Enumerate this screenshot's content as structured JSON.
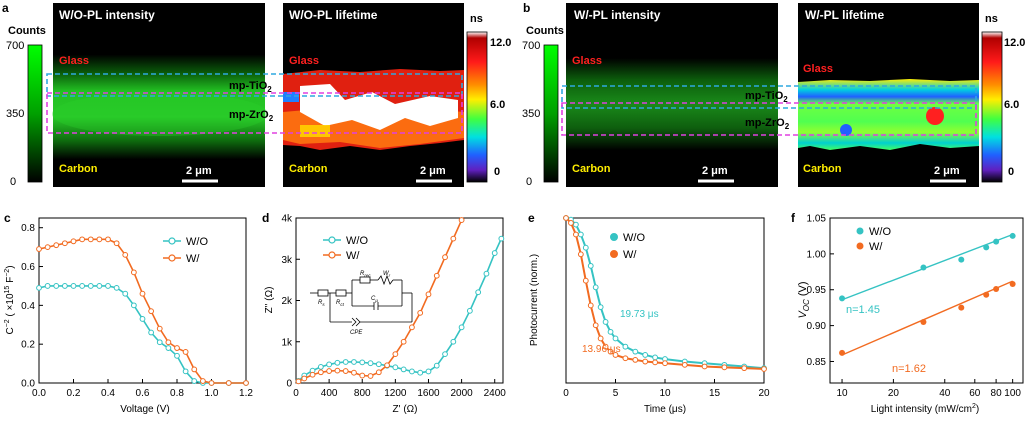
{
  "colors": {
    "wo": "#35c3c3",
    "w": "#f26b21",
    "box_blue": "#2fa8e0",
    "box_mag": "#e040e0",
    "region_red": "#ff2020",
    "region_yellow": "#ffee00"
  },
  "panel_letters": {
    "a": "a",
    "b": "b",
    "c": "c",
    "d": "d",
    "e": "e",
    "f": "f"
  },
  "panel_a": {
    "intensity_title": "W/O-PL intensity",
    "lifetime_title": "W/O-PL lifetime",
    "counts_label": "Counts",
    "counts_ticks": [
      "700",
      "350",
      "0"
    ],
    "ns_label": "ns",
    "ns_ticks": [
      "12.0",
      "6.0",
      "0"
    ],
    "glass": "Glass",
    "carbon": "Carbon",
    "tio2": "mp-TiO",
    "zro2": "mp-ZrO",
    "sub": "2",
    "scale": "2 μm"
  },
  "panel_b": {
    "intensity_title": "W/-PL intensity",
    "lifetime_title": "W/-PL lifetime",
    "counts_label": "Counts",
    "counts_ticks": [
      "700",
      "350",
      "0"
    ],
    "ns_label": "ns",
    "ns_ticks": [
      "12.0",
      "6.0",
      "0"
    ],
    "glass": "Glass",
    "carbon": "Carbon",
    "tio2": "mp-TiO",
    "zro2": "mp-ZrO",
    "sub": "2",
    "scale": "2 μm"
  },
  "chart_data": [
    {
      "panel": "c",
      "type": "line",
      "xlabel": "Voltage (V)",
      "ylabel_main": "C",
      "ylabel_sup1": "−2",
      "ylabel_mid": " ( ×10",
      "ylabel_sup2": "15",
      "ylabel_tail": " F",
      "ylabel_sup3": "−2",
      "ylabel_end": ")",
      "xlim": [
        0,
        1.2
      ],
      "ylim": [
        0,
        0.85
      ],
      "xticks": [
        "0.0",
        "0.2",
        "0.4",
        "0.6",
        "0.8",
        "1.0",
        "1.2"
      ],
      "yticks": [
        "0.0",
        "0.2",
        "0.4",
        "0.6",
        "0.8"
      ],
      "series": [
        {
          "name": "W/O",
          "x": [
            0,
            0.05,
            0.1,
            0.15,
            0.2,
            0.25,
            0.3,
            0.35,
            0.4,
            0.45,
            0.5,
            0.55,
            0.6,
            0.65,
            0.7,
            0.75,
            0.8,
            0.85,
            0.9,
            0.95,
            1.0,
            1.1,
            1.2
          ],
          "y": [
            0.49,
            0.5,
            0.5,
            0.5,
            0.5,
            0.5,
            0.5,
            0.5,
            0.5,
            0.49,
            0.46,
            0.4,
            0.33,
            0.26,
            0.21,
            0.18,
            0.14,
            0.06,
            0.01,
            0.0,
            0.0,
            0.0,
            0.0
          ]
        },
        {
          "name": "W/",
          "x": [
            0,
            0.05,
            0.1,
            0.15,
            0.2,
            0.25,
            0.3,
            0.35,
            0.4,
            0.45,
            0.5,
            0.55,
            0.6,
            0.65,
            0.7,
            0.75,
            0.8,
            0.85,
            0.9,
            0.95,
            1.0,
            1.1,
            1.2
          ],
          "y": [
            0.69,
            0.7,
            0.71,
            0.72,
            0.73,
            0.74,
            0.74,
            0.74,
            0.74,
            0.72,
            0.66,
            0.57,
            0.46,
            0.37,
            0.28,
            0.21,
            0.18,
            0.16,
            0.07,
            0.01,
            0.0,
            0.0,
            0.0
          ]
        }
      ]
    },
    {
      "panel": "d",
      "type": "line",
      "xlabel": "Z' (Ω)",
      "ylabel": "Z'' (Ω)",
      "xlim": [
        0,
        2500
      ],
      "ylim": [
        0,
        4000
      ],
      "xticks": [
        "0",
        "400",
        "800",
        "1200",
        "1600",
        "2000",
        "2400"
      ],
      "yticks": [
        "0",
        "1k",
        "2k",
        "3k",
        "4k"
      ],
      "inset_labels": {
        "rs": "R",
        "rs_sub": "s",
        "rct": "R",
        "rct_sub": "ct",
        "rrec": "R",
        "rrec_sub": "rec",
        "wr": "W",
        "wr_sub": "r",
        "cpe_label": "CPE",
        "cu": "C",
        "cu_sub": "μ"
      },
      "series": [
        {
          "name": "W/O",
          "x": [
            30,
            100,
            200,
            300,
            400,
            500,
            600,
            700,
            800,
            900,
            1000,
            1100,
            1200,
            1300,
            1400,
            1500,
            1600,
            1700,
            1800,
            1900,
            2000,
            2100,
            2200,
            2300,
            2400,
            2480
          ],
          "y": [
            50,
            180,
            300,
            390,
            450,
            490,
            510,
            510,
            500,
            480,
            455,
            420,
            380,
            330,
            280,
            250,
            280,
            420,
            700,
            1000,
            1350,
            1750,
            2200,
            2650,
            3150,
            3500
          ]
        },
        {
          "name": "W/",
          "x": [
            30,
            100,
            200,
            300,
            400,
            500,
            600,
            700,
            800,
            900,
            1000,
            1100,
            1200,
            1300,
            1400,
            1500,
            1600,
            1700,
            1800,
            1900,
            2000
          ],
          "y": [
            40,
            110,
            200,
            260,
            290,
            300,
            290,
            250,
            180,
            170,
            260,
            430,
            700,
            1000,
            1350,
            1700,
            2150,
            2600,
            3050,
            3500,
            3950
          ]
        }
      ]
    },
    {
      "panel": "e",
      "type": "line",
      "xlabel": "Time (μs)",
      "ylabel": "Photocurrent (norm.)",
      "xlim": [
        0,
        20
      ],
      "ylim": [
        0,
        1.0
      ],
      "xticks": [
        "0",
        "5",
        "10",
        "15",
        "20"
      ],
      "annotations": [
        "19.73 μs",
        "13.96 μs"
      ],
      "series": [
        {
          "name": "W/O",
          "x": [
            0,
            0.5,
            1,
            1.5,
            2,
            2.5,
            3,
            3.5,
            4,
            4.5,
            5,
            6,
            7,
            8,
            9,
            10,
            12,
            14,
            16,
            18,
            20
          ],
          "y": [
            1.0,
            0.99,
            0.96,
            0.9,
            0.82,
            0.71,
            0.58,
            0.46,
            0.37,
            0.31,
            0.27,
            0.22,
            0.19,
            0.17,
            0.155,
            0.145,
            0.13,
            0.12,
            0.11,
            0.1,
            0.09
          ]
        },
        {
          "name": "W/",
          "x": [
            0,
            0.5,
            1,
            1.5,
            2,
            2.5,
            3,
            3.5,
            4,
            4.5,
            5,
            6,
            7,
            8,
            9,
            10,
            12,
            14,
            16,
            18,
            20
          ],
          "y": [
            1.0,
            0.97,
            0.9,
            0.78,
            0.62,
            0.47,
            0.35,
            0.27,
            0.22,
            0.19,
            0.17,
            0.15,
            0.14,
            0.13,
            0.125,
            0.12,
            0.11,
            0.1,
            0.095,
            0.09,
            0.085
          ]
        }
      ]
    },
    {
      "panel": "f",
      "type": "scatter",
      "xlabel": "Light intensity (mW/cm",
      "xlabel_sup": "2",
      "xlabel_end": ")",
      "ylabel": "V",
      "ylabel_sub": "OC",
      "ylabel_end": " (V)",
      "xscale": "log",
      "xlim": [
        8.5,
        115
      ],
      "ylim": [
        0.82,
        1.05
      ],
      "xticks": [
        "10",
        "20",
        "40",
        "60",
        "80",
        "100"
      ],
      "xtick_vals": [
        10,
        20,
        40,
        60,
        80,
        100
      ],
      "yticks": [
        "0.85",
        "0.90",
        "0.95",
        "1.00",
        "1.05"
      ],
      "ytick_vals": [
        0.85,
        0.9,
        0.95,
        1.0,
        1.05
      ],
      "annotations": [
        "n=1.45",
        "n=1.62"
      ],
      "series": [
        {
          "name": "W/O",
          "x": [
            10,
            30,
            50,
            70,
            80,
            100
          ],
          "y": [
            0.938,
            0.981,
            0.992,
            1.009,
            1.017,
            1.025
          ],
          "fit": [
            0.936,
            1.027
          ]
        },
        {
          "name": "W/",
          "x": [
            10,
            30,
            50,
            70,
            80,
            100
          ],
          "y": [
            0.862,
            0.905,
            0.925,
            0.943,
            0.951,
            0.958
          ],
          "fit": [
            0.859,
            0.962
          ]
        }
      ]
    }
  ]
}
